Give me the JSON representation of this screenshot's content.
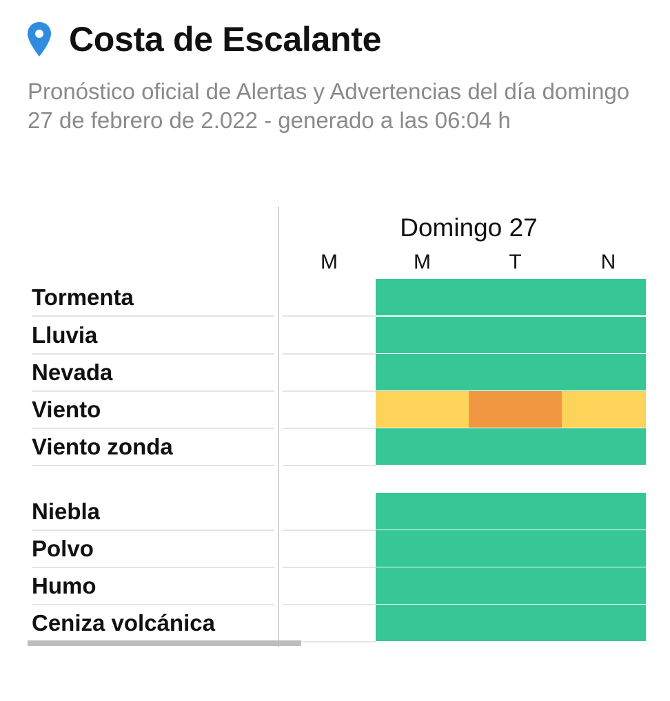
{
  "location": {
    "title": "Costa de Escalante",
    "subtitle": "Pronóstico oficial de Alertas y Advertencias del día domingo 27 de febrero de 2.022 - generado a las 06:04 h"
  },
  "colors": {
    "pin": "#2f8cde",
    "green": "#37c796",
    "yellow": "#fdd35a",
    "orange": "#f29741"
  },
  "day": "Domingo 27",
  "periods": [
    "M",
    "M",
    "T",
    "N"
  ],
  "hazards": [
    {
      "label": "Tormenta",
      "levels": [
        null,
        "green",
        "green",
        "green"
      ]
    },
    {
      "label": "Lluvia",
      "levels": [
        null,
        "green",
        "green",
        "green"
      ]
    },
    {
      "label": "Nevada",
      "levels": [
        null,
        "green",
        "green",
        "green"
      ]
    },
    {
      "label": "Viento",
      "levels": [
        null,
        "yellow",
        "orange",
        "yellow"
      ]
    },
    {
      "label": "Viento zonda",
      "levels": [
        null,
        "green",
        "green",
        "green"
      ]
    },
    {
      "label": "Niebla",
      "levels": [
        null,
        "green",
        "green",
        "green"
      ]
    },
    {
      "label": "Polvo",
      "levels": [
        null,
        "green",
        "green",
        "green"
      ]
    },
    {
      "label": "Humo",
      "levels": [
        null,
        "green",
        "green",
        "green"
      ]
    },
    {
      "label": "Ceniza volcánica",
      "levels": [
        null,
        "green",
        "green",
        "green"
      ]
    }
  ]
}
